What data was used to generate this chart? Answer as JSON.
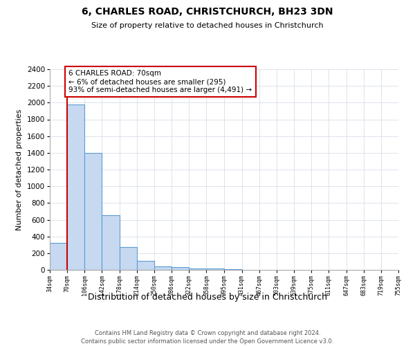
{
  "title": "6, CHARLES ROAD, CHRISTCHURCH, BH23 3DN",
  "subtitle": "Size of property relative to detached houses in Christchurch",
  "xlabel": "Distribution of detached houses by size in Christchurch",
  "ylabel": "Number of detached properties",
  "bar_left_edges": [
    34,
    70,
    106,
    142,
    178,
    214,
    250,
    286,
    322,
    358,
    395
  ],
  "bar_heights": [
    325,
    1980,
    1400,
    650,
    275,
    105,
    45,
    30,
    20,
    15,
    5
  ],
  "bin_width": 36,
  "bar_color": "#c6d9f0",
  "bar_edge_color": "#5b9bd5",
  "property_line_x": 70,
  "property_line_color": "#cc0000",
  "annotation_text": "6 CHARLES ROAD: 70sqm\n← 6% of detached houses are smaller (295)\n93% of semi-detached houses are larger (4,491) →",
  "annotation_box_color": "#cc0000",
  "ylim": [
    0,
    2400
  ],
  "yticks": [
    0,
    200,
    400,
    600,
    800,
    1000,
    1200,
    1400,
    1600,
    1800,
    2000,
    2200,
    2400
  ],
  "xtick_labels": [
    "34sqm",
    "70sqm",
    "106sqm",
    "142sqm",
    "178sqm",
    "214sqm",
    "250sqm",
    "286sqm",
    "322sqm",
    "358sqm",
    "395sqm",
    "431sqm",
    "467sqm",
    "503sqm",
    "539sqm",
    "575sqm",
    "611sqm",
    "647sqm",
    "683sqm",
    "719sqm",
    "755sqm"
  ],
  "xtick_positions": [
    34,
    70,
    106,
    142,
    178,
    214,
    250,
    286,
    322,
    358,
    395,
    431,
    467,
    503,
    539,
    575,
    611,
    647,
    683,
    719,
    755
  ],
  "xlim_left": 34,
  "xlim_right": 755,
  "footer_line1": "Contains HM Land Registry data © Crown copyright and database right 2024.",
  "footer_line2": "Contains public sector information licensed under the Open Government Licence v3.0.",
  "grid_color": "#d0d8e4",
  "background_color": "#ffffff",
  "fig_width": 6.0,
  "fig_height": 5.0,
  "dpi": 100
}
